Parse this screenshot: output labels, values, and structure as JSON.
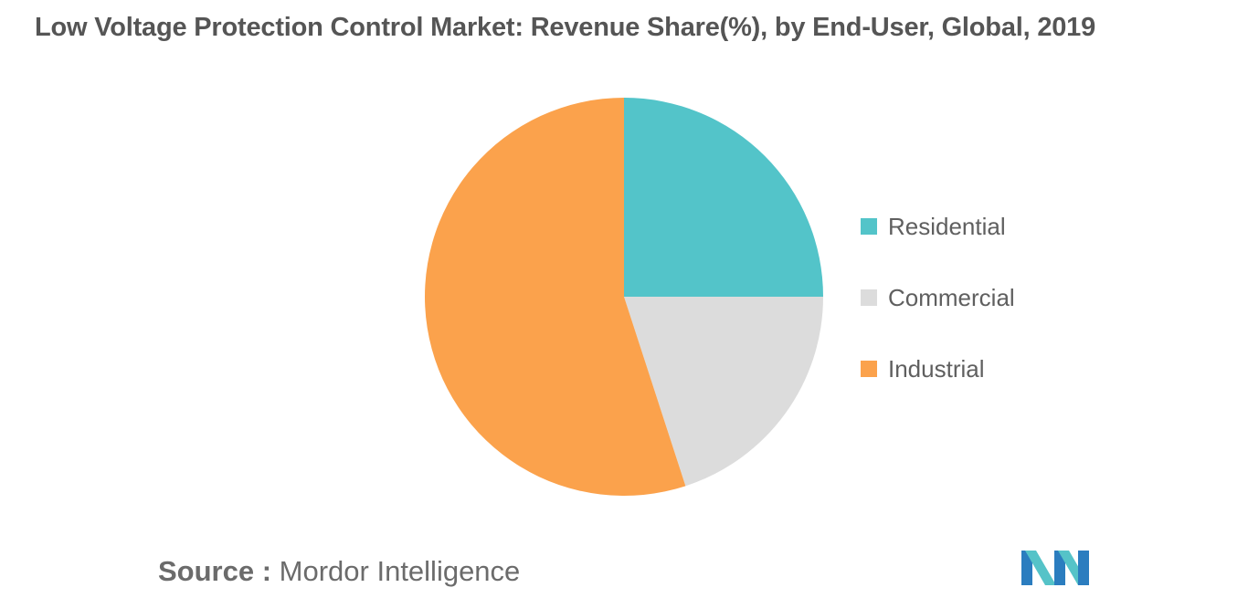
{
  "title": "Low Voltage Protection Control Market: Revenue Share(%), by End-User, Global, 2019",
  "source": {
    "label": "Source :",
    "value": "Mordor Intelligence"
  },
  "logo": {
    "icon": "mordor-intelligence-logo",
    "colors": [
      "#2b7dbf",
      "#55c3c8"
    ]
  },
  "chart_data": {
    "type": "pie",
    "title": "Low Voltage Protection Control Market: Revenue Share(%), by End-User, Global, 2019",
    "start_angle": "12 o'clock, clockwise",
    "legend_position": "right",
    "slices": [
      {
        "name": "Residential",
        "value": 25,
        "color": "#53c4c9"
      },
      {
        "name": "Commercial",
        "value": 20,
        "color": "#dcdcdc"
      },
      {
        "name": "Industrial",
        "value": 55,
        "color": "#fba24c"
      }
    ]
  }
}
